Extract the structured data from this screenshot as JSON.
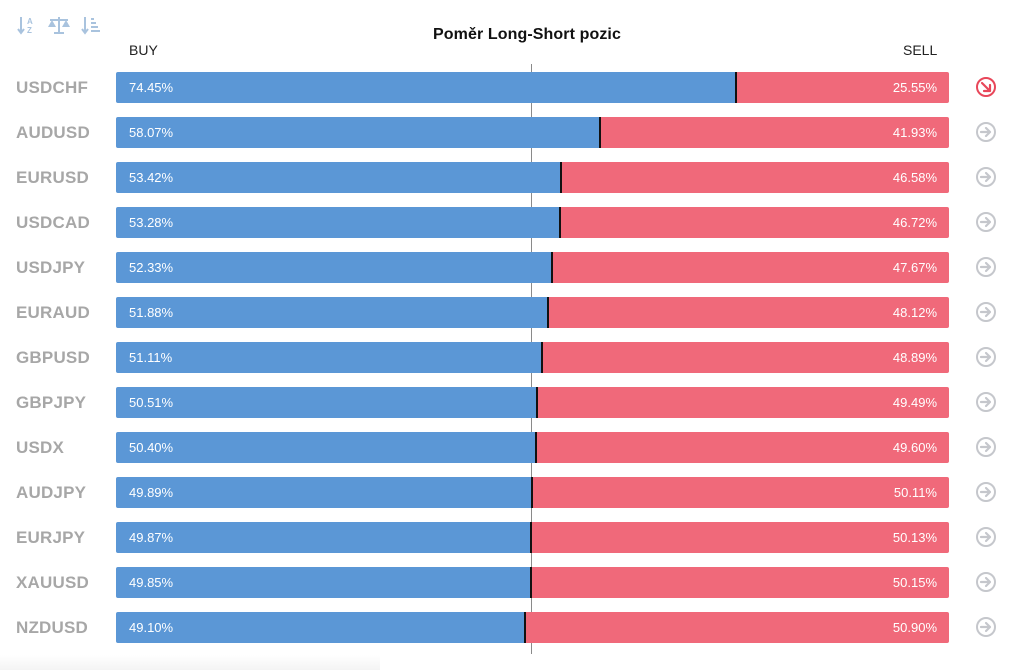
{
  "toolbar": {
    "buttons": [
      {
        "name": "sort-alpha-icon"
      },
      {
        "name": "balance-scale-icon"
      },
      {
        "name": "sort-amount-icon"
      }
    ]
  },
  "colors": {
    "buy": "#5b97d6",
    "sell": "#f0697a",
    "highlight_arrow": "#e8475a",
    "neutral_arrow": "#c5c7cc"
  },
  "chart_data": {
    "type": "bar",
    "title": "Poměr Long-Short pozic",
    "left_label": "BUY",
    "right_label": "SELL",
    "categories": [
      "USDCHF",
      "AUDUSD",
      "EURUSD",
      "USDCAD",
      "USDJPY",
      "EURAUD",
      "GBPUSD",
      "GBPJPY",
      "USDX",
      "AUDJPY",
      "EURJPY",
      "XAUUSD",
      "NZDUSD"
    ],
    "series": [
      {
        "name": "BUY",
        "values": [
          74.45,
          58.07,
          53.42,
          53.28,
          52.33,
          51.88,
          51.11,
          50.51,
          50.4,
          49.89,
          49.87,
          49.85,
          49.1
        ],
        "labels": [
          "74.45%",
          "58.07%",
          "53.42%",
          "53.28%",
          "52.33%",
          "51.88%",
          "51.11%",
          "50.51%",
          "50.40%",
          "49.89%",
          "49.87%",
          "49.85%",
          "49.10%"
        ]
      },
      {
        "name": "SELL",
        "values": [
          25.55,
          41.93,
          46.58,
          46.72,
          47.67,
          48.12,
          48.89,
          49.49,
          49.6,
          50.11,
          50.13,
          50.15,
          50.9
        ],
        "labels": [
          "25.55%",
          "41.93%",
          "46.58%",
          "46.72%",
          "47.67%",
          "48.12%",
          "48.89%",
          "49.49%",
          "49.60%",
          "50.11%",
          "50.13%",
          "50.15%",
          "50.90%"
        ]
      }
    ],
    "stacked": true,
    "ylim": [
      0,
      100
    ],
    "reference_line": 50,
    "row_icons": [
      "arrow-down-right-icon",
      "arrow-right-icon",
      "arrow-right-icon",
      "arrow-right-icon",
      "arrow-right-icon",
      "arrow-right-icon",
      "arrow-right-icon",
      "arrow-right-icon",
      "arrow-right-icon",
      "arrow-right-icon",
      "arrow-right-icon",
      "arrow-right-icon",
      "arrow-right-icon"
    ],
    "highlighted": [
      true,
      false,
      false,
      false,
      false,
      false,
      false,
      false,
      false,
      false,
      false,
      false,
      false
    ]
  }
}
